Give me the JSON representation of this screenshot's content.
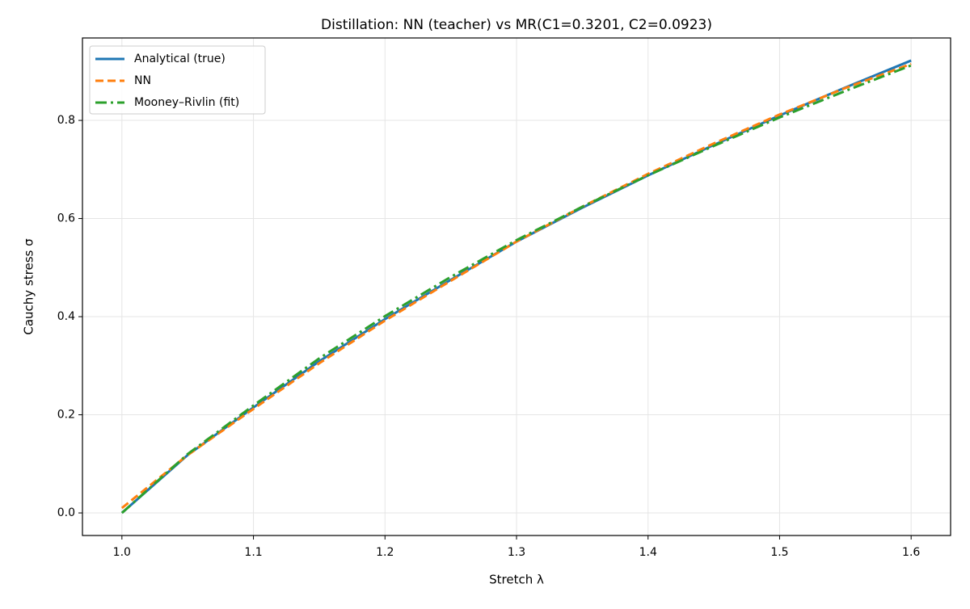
{
  "chart_data": {
    "type": "line",
    "title": "Distillation: NN (teacher) vs MR(C1=0.3201, C2=0.0923)",
    "x_label": "Stretch λ",
    "y_label": "Cauchy stress σ",
    "x": [
      1.0,
      1.05,
      1.1,
      1.15,
      1.2,
      1.25,
      1.3,
      1.35,
      1.4,
      1.45,
      1.5,
      1.55,
      1.6
    ],
    "series": [
      {
        "name": "Analytical (true)",
        "color": "#1f77b4",
        "dash": "solid",
        "values": [
          0,
          0.118,
          0.215,
          0.309,
          0.395,
          0.475,
          0.553,
          0.622,
          0.688,
          0.75,
          0.81,
          0.867,
          0.922
        ]
      },
      {
        "name": "NN",
        "color": "#ff7f0e",
        "dash": "dashed",
        "values": [
          0.01,
          0.118,
          0.212,
          0.305,
          0.392,
          0.473,
          0.553,
          0.624,
          0.691,
          0.753,
          0.812,
          0.866,
          0.915
        ]
      },
      {
        "name": "Mooney–Rivlin (fit)",
        "color": "#2ca02c",
        "dash": "dashdot",
        "values": [
          0,
          0.12,
          0.219,
          0.315,
          0.401,
          0.481,
          0.556,
          0.624,
          0.688,
          0.748,
          0.806,
          0.86,
          0.912
        ]
      }
    ],
    "xlim": [
      0.97,
      1.63
    ],
    "ylim": [
      -0.046,
      0.968
    ],
    "xticks": [
      {
        "value": 1.0,
        "label": "1.0"
      },
      1.1,
      1.2,
      1.3,
      1.4,
      1.5,
      {
        "value": 1.6,
        "label": "1.6"
      }
    ],
    "yticks": [
      {
        "value": 0,
        "label": "0.0"
      },
      0.2,
      0.4,
      0.6,
      0.8
    ],
    "grid": true,
    "legend": "upper left"
  }
}
